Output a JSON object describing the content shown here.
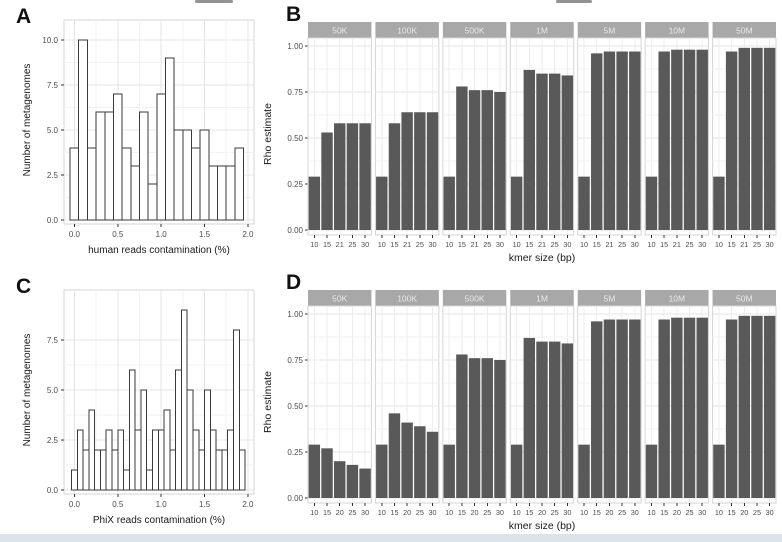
{
  "colors": {
    "bar_fill": "#595959",
    "hist_fill": "#ffffff",
    "hist_stroke": "#3a3a3a",
    "strip_bg": "#a8a8a8",
    "strip_text": "#e8e8e8",
    "grid_major": "#e4e4e4",
    "grid_minor": "#f2f2f2",
    "panel_border": "#d6d6d6",
    "axis_text": "#4d4d4d",
    "title_text": "#1a1a1a",
    "tick_mark": "#333333",
    "page_bottom_strip": "#dde3eb"
  },
  "chart_data": [
    {
      "panel_label": "A",
      "type": "bar",
      "subtype": "histogram",
      "xlabel": "human reads contamination (%)",
      "ylabel": "Number of metagenomes",
      "bin_start": -0.05,
      "bin_width": 0.1,
      "values": [
        4,
        10,
        4,
        6,
        6,
        7,
        4,
        3,
        6,
        2,
        7,
        9,
        5,
        5,
        4,
        5,
        3,
        3,
        3,
        4
      ],
      "xticks": [
        "0.0",
        "0.5",
        "1.0",
        "1.5",
        "2.0"
      ],
      "xtick_values": [
        0,
        0.5,
        1.0,
        1.5,
        2.0
      ],
      "yticks": [
        "0.0",
        "2.5",
        "5.0",
        "7.5",
        "10.0"
      ],
      "ytick_values": [
        0,
        2.5,
        5,
        7.5,
        10
      ],
      "xlim": [
        -0.12,
        2.07
      ],
      "ylim": [
        0,
        10.5
      ],
      "grid": true,
      "total_metagenomes": 100
    },
    {
      "panel_label": "B",
      "type": "bar",
      "subtype": "faceted-bar",
      "xlabel": "kmer size (bp)",
      "ylabel": "Rho estimate",
      "facets": [
        "50K",
        "100K",
        "500K",
        "1M",
        "5M",
        "10M",
        "50M"
      ],
      "categories": [
        "10",
        "15",
        "21",
        "25",
        "30"
      ],
      "series": [
        {
          "name": "50K",
          "values": [
            0.29,
            0.53,
            0.58,
            0.58,
            0.58
          ]
        },
        {
          "name": "100K",
          "values": [
            0.29,
            0.58,
            0.64,
            0.64,
            0.64
          ]
        },
        {
          "name": "500K",
          "values": [
            0.29,
            0.78,
            0.76,
            0.76,
            0.75
          ]
        },
        {
          "name": "1M",
          "values": [
            0.29,
            0.87,
            0.85,
            0.85,
            0.84
          ]
        },
        {
          "name": "5M",
          "values": [
            0.29,
            0.96,
            0.97,
            0.97,
            0.97
          ]
        },
        {
          "name": "10M",
          "values": [
            0.29,
            0.97,
            0.98,
            0.98,
            0.98
          ]
        },
        {
          "name": "50M",
          "values": [
            0.29,
            0.97,
            0.99,
            0.99,
            0.99
          ]
        }
      ],
      "yticks": [
        "0.00",
        "0.25",
        "0.50",
        "0.75",
        "1.00"
      ],
      "ytick_values": [
        0,
        0.25,
        0.5,
        0.75,
        1.0
      ],
      "ylim": [
        0,
        1.05
      ],
      "grid": true,
      "legend": "none"
    },
    {
      "panel_label": "C",
      "type": "bar",
      "subtype": "histogram",
      "xlabel": "PhiX reads contamination (%)",
      "ylabel": "Number of metagenomes",
      "bin_start": -0.0333,
      "bin_width": 0.06667,
      "values": [
        1,
        3,
        2,
        4,
        2,
        2,
        3,
        2,
        3,
        1,
        6,
        3,
        5,
        1,
        3,
        3,
        4,
        2,
        6,
        9,
        5,
        3,
        2,
        5,
        3,
        2,
        2,
        3,
        8,
        2
      ],
      "xticks": [
        "0.0",
        "0.5",
        "1.0",
        "1.5",
        "2.0"
      ],
      "xtick_values": [
        0,
        0.5,
        1.0,
        1.5,
        2.0
      ],
      "yticks": [
        "0.0",
        "2.5",
        "5.0",
        "7.5"
      ],
      "ytick_values": [
        0,
        2.5,
        5,
        7.5
      ],
      "xlim": [
        -0.12,
        2.07
      ],
      "ylim": [
        0,
        9.45
      ],
      "grid": true,
      "total_metagenomes": 100
    },
    {
      "panel_label": "D",
      "type": "bar",
      "subtype": "faceted-bar",
      "xlabel": "kmer size (bp)",
      "ylabel": "Rho estimate",
      "facets": [
        "50K",
        "100K",
        "500K",
        "1M",
        "5M",
        "10M",
        "50M"
      ],
      "categories": [
        "10",
        "15",
        "20",
        "25",
        "30"
      ],
      "series": [
        {
          "name": "50K",
          "values": [
            0.29,
            0.27,
            0.2,
            0.18,
            0.16
          ]
        },
        {
          "name": "100K",
          "values": [
            0.29,
            0.46,
            0.41,
            0.39,
            0.36
          ]
        },
        {
          "name": "500K",
          "values": [
            0.29,
            0.78,
            0.76,
            0.76,
            0.75
          ]
        },
        {
          "name": "1M",
          "values": [
            0.29,
            0.87,
            0.85,
            0.85,
            0.84
          ]
        },
        {
          "name": "5M",
          "values": [
            0.29,
            0.96,
            0.97,
            0.97,
            0.97
          ]
        },
        {
          "name": "10M",
          "values": [
            0.29,
            0.97,
            0.98,
            0.98,
            0.98
          ]
        },
        {
          "name": "50M",
          "values": [
            0.29,
            0.97,
            0.99,
            0.99,
            0.99
          ]
        }
      ],
      "yticks": [
        "0.00",
        "0.25",
        "0.50",
        "0.75",
        "1.00"
      ],
      "ytick_values": [
        0,
        0.25,
        0.5,
        0.75,
        1.0
      ],
      "ylim": [
        0,
        1.05
      ],
      "grid": true,
      "legend": "none"
    }
  ]
}
